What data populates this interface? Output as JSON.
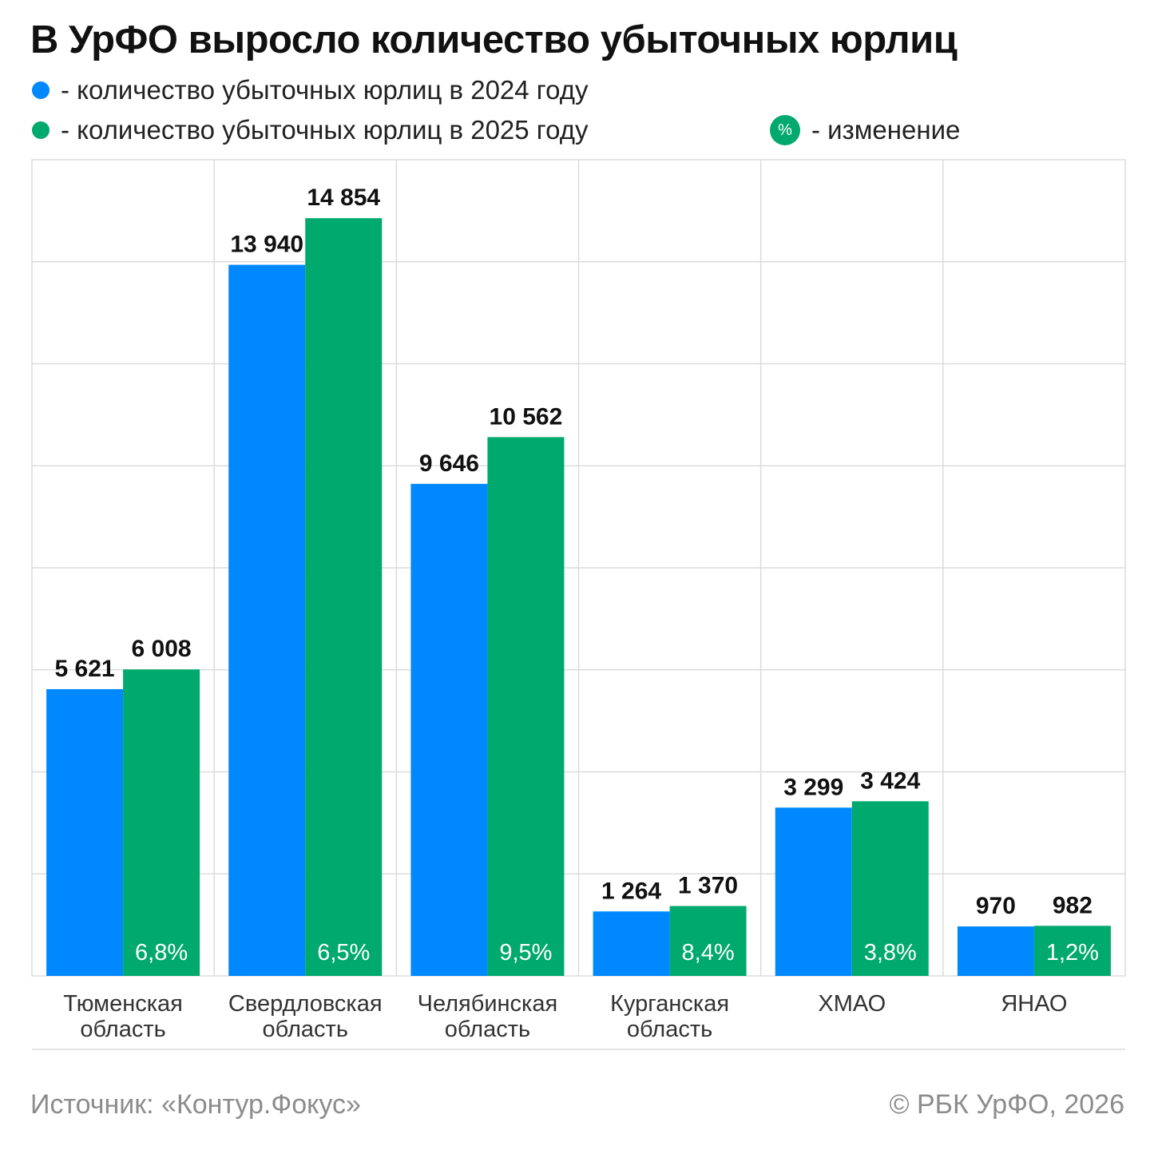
{
  "title": "В УрФО выросло количество убыточных юрлиц",
  "legend": {
    "series_2024": "- количество убыточных юрлиц в 2024 году",
    "series_2025": "- количество убыточных юрлиц в 2025 году",
    "change_badge": "%",
    "change": "- изменение"
  },
  "colors": {
    "series_2024": "#0088ff",
    "series_2025": "#00a96e",
    "grid": "#dcdcdc"
  },
  "chart_data": {
    "type": "bar",
    "title": "В УрФО выросло количество убыточных юрлиц",
    "categories": [
      [
        "Тюменская",
        "область"
      ],
      [
        "Свердловская",
        "область"
      ],
      [
        "Челябинская",
        "область"
      ],
      [
        "Курганская",
        "область"
      ],
      [
        "ХМАО"
      ],
      [
        "ЯНАО"
      ]
    ],
    "series": [
      {
        "name": "количество убыточных юрлиц в 2024 году",
        "color": "#0088ff",
        "values": [
          5621,
          13940,
          9646,
          1264,
          3299,
          970
        ],
        "labels": [
          "5 621",
          "13 940",
          "9 646",
          "1 264",
          "3 299",
          "970"
        ]
      },
      {
        "name": "количество убыточных юрлиц в 2025 году",
        "color": "#00a96e",
        "values": [
          6008,
          14854,
          10562,
          1370,
          3424,
          982
        ],
        "labels": [
          "6 008",
          "14 854",
          "10 562",
          "1 370",
          "3 424",
          "982"
        ]
      }
    ],
    "change": [
      "6,8%",
      "6,5%",
      "9,5%",
      "8,4%",
      "3,8%",
      "1,2%"
    ],
    "ylim": [
      0,
      16000
    ],
    "grid": true,
    "legend_position": "top"
  },
  "footer": {
    "source": "Источник: «Контур.Фокус»",
    "copyright": "© РБК УрФО, 2026"
  }
}
